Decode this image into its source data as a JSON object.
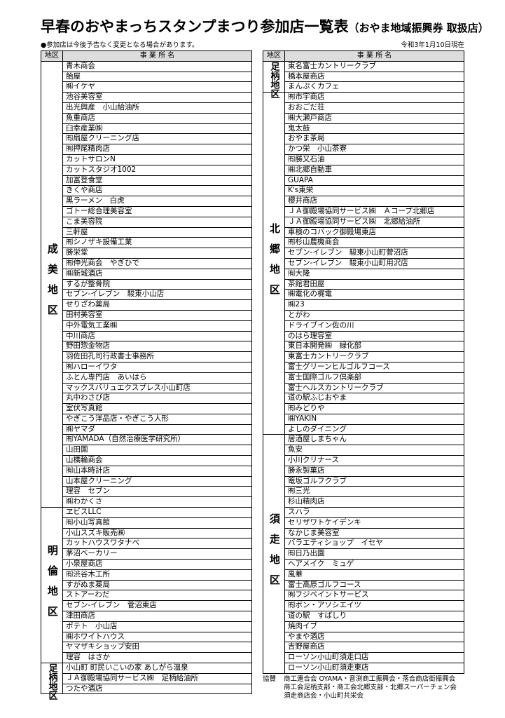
{
  "header": {
    "title": "早春のおやまっちスタンプまつり参加店一覧表",
    "subtitle": "（おやま地域振興券 取扱店）",
    "note": "●参加店は今後予告なく変更となる場合があります。",
    "date": "令和3年1月10日現在"
  },
  "columns": {
    "district": "地区",
    "name": "事 業 所 名"
  },
  "left": [
    {
      "district": "成美地区",
      "shops": [
        "青木商会",
        "飴屋",
        "㈱イケヤ",
        "池谷美容室",
        "出光興産　小山給油所",
        "魚重商店",
        "臼幸産業㈱",
        "㈲扇屋クリーニング店",
        "㈲押尾精肉店",
        "カットサロンN",
        "カットスタジオ1002",
        "加冨登食堂",
        "きくや商店",
        "黒ラーメン　白虎",
        "ゴトー総合理美容室",
        "こま美容院",
        "三軒屋",
        "㈲シノザキ設備工業",
        "勝栄堂",
        "㈲伸光商会　やぎひで",
        "㈱新城酒店",
        "するが整骨院",
        "セブン-イレブン　駿東小山店",
        "せりざわ薬局",
        "田村美容室",
        "中外電気工業㈱",
        "中川商店",
        "野田惣金物店",
        "羽佐田孔司行政書士事務所",
        "㈲ハローイワタ",
        "ふとん専門店　あいはら",
        "マックスバリュエクスプレス小山町店",
        "丸中わさび店",
        "室伏写真館",
        "やぎこう洋品店・やぎこう人形",
        "㈱ヤマダ",
        "㈲YAMADA（自然治療医学研究所）",
        "山田園",
        "山橋輪商会",
        "㈲山本時計店",
        "山本屋クリーニング",
        "理容　セブン",
        "㈱わかくさ"
      ]
    },
    {
      "district": "明倫地区",
      "shops": [
        "ヱビスLLC",
        "㈲小山写真館",
        "小山スズキ販売㈱",
        "カットハウスワタナベ",
        "茅沼ベーカリー",
        "小泉屋商店",
        "㈲渋谷木工所",
        "すがぬま薬局",
        "ストアーわだ",
        "セブン-イレブン　菅沼東店",
        "津田商店",
        "ポテト　小山店",
        "㈱ホワイトハウス",
        "ヤマザキショップ安田",
        "理容　はさか"
      ]
    },
    {
      "district": "足柄地区",
      "shops": [
        "小山町 町民いこいの家 あしがら温泉",
        "ＪＡ御殿場協同サービス㈱　足柄給油所",
        "つたや酒店"
      ]
    }
  ],
  "right": [
    {
      "district": "足柄地区",
      "shops": [
        "東名富士カントリークラブ",
        "橋本屋商店",
        "まんぷくカフェ"
      ]
    },
    {
      "district": "北郷地区",
      "shops": [
        "㈲市宇商店",
        "おおごだ荘",
        "㈱大瀬戸商店",
        "鬼太鼓",
        "おやま茶局",
        "かつ栄　小山茶寮",
        "㈲勝又石油",
        "㈱北郷自動車",
        "GUAPA",
        "K's東栄",
        "櫻井商店",
        "ＪＡ御殿場協同サービス㈱　Ａコープ北郷店",
        "ＪＡ御殿場協同サービス㈱　北郷給油所",
        "車検のコバック御殿場東店",
        "㈲杉山農機商会",
        "セブン-イレブン　駿東小山町菅沼店",
        "セブン-イレブン　駿東小山町用沢店",
        "㈲大隆",
        "茶館君田屋",
        "㈱電化の梶電",
        "㈱23",
        "とがわ",
        "ドライブイン佐の川",
        "のはら理容室",
        "東日本開発㈱　緑化部",
        "東富士カントリークラブ",
        "富士グリーンヒルゴルフコース",
        "富士国際ゴルフ倶楽部",
        "富士ヘルスカントリークラブ",
        "道の駅ふじおやま",
        "㈲みどりや",
        "㈱YAKIN",
        "よしのダイニング"
      ]
    },
    {
      "district": "須走地区",
      "shops": [
        "居酒屋しまちゃん",
        "魚安",
        "小川クリナース",
        "勝永製菓店",
        "篭坂ゴルフクラブ",
        "㈲三光",
        "杉山精肉店",
        "スハラ",
        "セリザワトケイデンキ",
        "なかじま美容室",
        "バラエティショップ　イセヤ",
        "㈲日乃出園",
        "ヘアメイク　ミュゲ",
        "風華",
        "富士高原ゴルフコース",
        "㈲フジペイントサービス",
        "㈲ボン・アソシエイツ",
        "道の駅　すばしり",
        "焼肉イブ",
        "やまや酒店",
        "吉野屋商店",
        "ローソン小山町須走口店",
        "ローソン小山町須走東店"
      ]
    }
  ],
  "footer": {
    "label": "協賛",
    "lines": [
      "商工連合会 OYAMA・音渕商工振興会・落合商店街振興会",
      "商工会足柄支部・商工会北郷支部・北郷スーパーチェン会",
      "須走商店会・小山町共栄会"
    ]
  }
}
